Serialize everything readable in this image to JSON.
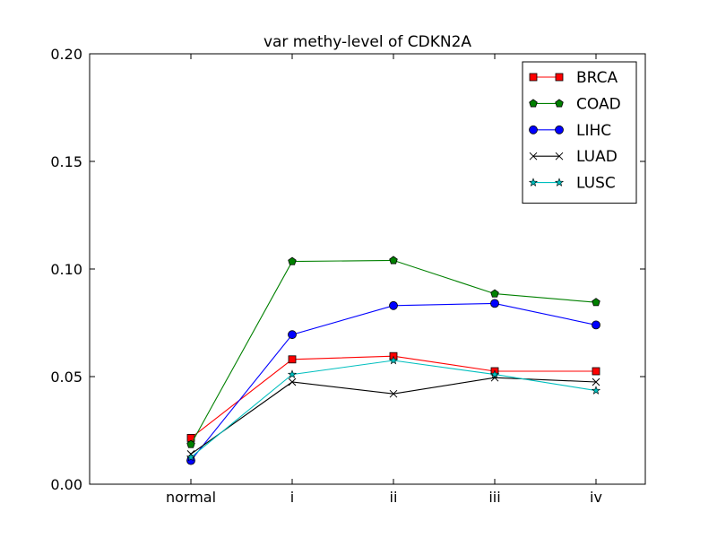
{
  "chart_data": {
    "type": "line",
    "title": "var methy-level of CDKN2A",
    "xlabel": "",
    "ylabel": "",
    "categories": [
      "normal",
      "i",
      "ii",
      "iii",
      "iv"
    ],
    "ylim": [
      0.0,
      0.2
    ],
    "yticks": [
      "0.00",
      "0.05",
      "0.10",
      "0.15",
      "0.20"
    ],
    "grid": false,
    "legend_position": "top-right",
    "series": [
      {
        "name": "BRCA",
        "color": "#ff0000",
        "marker": "square",
        "values": [
          0.0215,
          0.058,
          0.0595,
          0.0525,
          0.0525
        ]
      },
      {
        "name": "COAD",
        "color": "#008000",
        "marker": "pentagon",
        "values": [
          0.0185,
          0.1035,
          0.104,
          0.0885,
          0.0845
        ]
      },
      {
        "name": "LIHC",
        "color": "#0000ff",
        "marker": "circle",
        "values": [
          0.011,
          0.0695,
          0.083,
          0.084,
          0.074
        ]
      },
      {
        "name": "LUAD",
        "color": "#000000",
        "marker": "x",
        "values": [
          0.014,
          0.0475,
          0.042,
          0.0495,
          0.0475
        ]
      },
      {
        "name": "LUSC",
        "color": "#00bfbf",
        "marker": "star",
        "values": [
          0.0125,
          0.051,
          0.0575,
          0.051,
          0.0435
        ]
      }
    ]
  }
}
